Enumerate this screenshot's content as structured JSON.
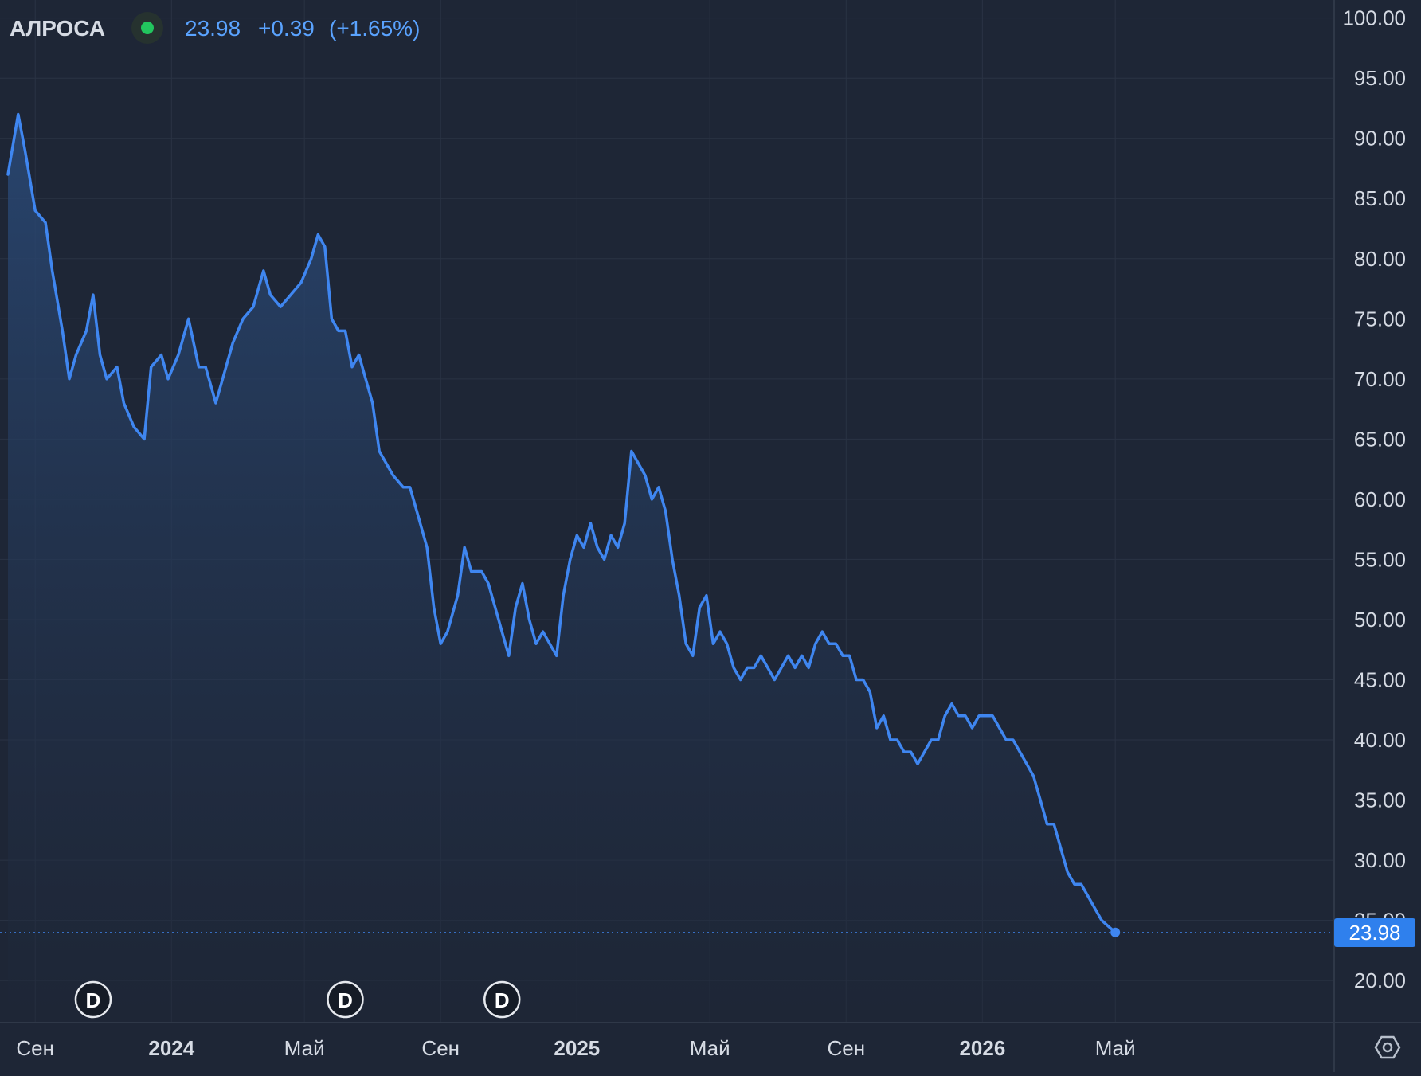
{
  "header": {
    "ticker": "АЛРОСА",
    "status_color": "#22c55e",
    "last_price": "23.98",
    "change": "+0.39",
    "change_pct": "(+1.65%)"
  },
  "price_tag": "23.98",
  "dividend_markers": [
    "D",
    "D",
    "D"
  ],
  "settings_icon": "gear-hexagon-icon",
  "colors": {
    "background": "#1e2636",
    "line": "#3f86f0",
    "fill_top": "#2a4a78",
    "text": "#d6dbe4",
    "grid": "#2a3344",
    "accent_text": "#5aa3ff"
  },
  "chart_data": {
    "type": "area",
    "title": "",
    "xlabel": "",
    "ylabel": "",
    "ylim": [
      16.5,
      101.5
    ],
    "xlim": [
      0.0,
      36.2
    ],
    "x_tick_labels": [
      {
        "x": 0.8,
        "label": "Сен",
        "bold": false
      },
      {
        "x": 4.8,
        "label": "2024",
        "bold": true
      },
      {
        "x": 8.7,
        "label": "Май",
        "bold": false
      },
      {
        "x": 12.7,
        "label": "Сен",
        "bold": false
      },
      {
        "x": 16.7,
        "label": "2025",
        "bold": true
      },
      {
        "x": 20.6,
        "label": "Май",
        "bold": false
      },
      {
        "x": 24.6,
        "label": "Сен",
        "bold": false
      },
      {
        "x": 28.6,
        "label": "2026",
        "bold": true
      },
      {
        "x": 32.5,
        "label": "Май",
        "bold": false
      }
    ],
    "y_ticks": [
      20,
      25,
      30,
      35,
      40,
      45,
      50,
      55,
      60,
      65,
      70,
      75,
      80,
      85,
      90,
      95,
      100
    ],
    "last_value": 23.98,
    "dividend_x": [
      2.5,
      9.9,
      14.5
    ],
    "series": [
      {
        "points": [
          [
            0.0,
            87
          ],
          [
            0.3,
            92
          ],
          [
            0.5,
            89
          ],
          [
            0.8,
            84
          ],
          [
            1.1,
            83
          ],
          [
            1.3,
            79
          ],
          [
            1.6,
            74
          ],
          [
            1.8,
            70
          ],
          [
            2.0,
            72
          ],
          [
            2.3,
            74
          ],
          [
            2.5,
            77
          ],
          [
            2.7,
            72
          ],
          [
            2.9,
            70
          ],
          [
            3.2,
            71
          ],
          [
            3.4,
            68
          ],
          [
            3.7,
            66
          ],
          [
            4.0,
            65
          ],
          [
            4.2,
            71
          ],
          [
            4.5,
            72
          ],
          [
            4.7,
            70
          ],
          [
            5.0,
            72
          ],
          [
            5.3,
            75
          ],
          [
            5.6,
            71
          ],
          [
            5.8,
            71
          ],
          [
            6.1,
            68
          ],
          [
            6.3,
            70
          ],
          [
            6.6,
            73
          ],
          [
            6.9,
            75
          ],
          [
            7.2,
            76
          ],
          [
            7.5,
            79
          ],
          [
            7.7,
            77
          ],
          [
            8.0,
            76
          ],
          [
            8.3,
            77
          ],
          [
            8.6,
            78
          ],
          [
            8.9,
            80
          ],
          [
            9.1,
            82
          ],
          [
            9.3,
            81
          ],
          [
            9.5,
            75
          ],
          [
            9.7,
            74
          ],
          [
            9.9,
            74
          ],
          [
            10.1,
            71
          ],
          [
            10.3,
            72
          ],
          [
            10.5,
            70
          ],
          [
            10.7,
            68
          ],
          [
            10.9,
            64
          ],
          [
            11.1,
            63
          ],
          [
            11.3,
            62
          ],
          [
            11.6,
            61
          ],
          [
            11.8,
            61
          ],
          [
            12.0,
            59
          ],
          [
            12.3,
            56
          ],
          [
            12.5,
            51
          ],
          [
            12.7,
            48
          ],
          [
            12.9,
            49
          ],
          [
            13.2,
            52
          ],
          [
            13.4,
            56
          ],
          [
            13.6,
            54
          ],
          [
            13.9,
            54
          ],
          [
            14.1,
            53
          ],
          [
            14.3,
            51
          ],
          [
            14.5,
            49
          ],
          [
            14.7,
            47
          ],
          [
            14.9,
            51
          ],
          [
            15.1,
            53
          ],
          [
            15.3,
            50
          ],
          [
            15.5,
            48
          ],
          [
            15.7,
            49
          ],
          [
            15.9,
            48
          ],
          [
            16.1,
            47
          ],
          [
            16.3,
            52
          ],
          [
            16.5,
            55
          ],
          [
            16.7,
            57
          ],
          [
            16.9,
            56
          ],
          [
            17.1,
            58
          ],
          [
            17.3,
            56
          ],
          [
            17.5,
            55
          ],
          [
            17.7,
            57
          ],
          [
            17.9,
            56
          ],
          [
            18.1,
            58
          ],
          [
            18.3,
            64
          ],
          [
            18.5,
            63
          ],
          [
            18.7,
            62
          ],
          [
            18.9,
            60
          ],
          [
            19.1,
            61
          ],
          [
            19.3,
            59
          ],
          [
            19.5,
            55
          ],
          [
            19.7,
            52
          ],
          [
            19.9,
            48
          ],
          [
            20.1,
            47
          ],
          [
            20.3,
            51
          ],
          [
            20.5,
            52
          ],
          [
            20.7,
            48
          ],
          [
            20.9,
            49
          ],
          [
            21.1,
            48
          ],
          [
            21.3,
            46
          ],
          [
            21.5,
            45
          ],
          [
            21.7,
            46
          ],
          [
            21.9,
            46
          ],
          [
            22.1,
            47
          ],
          [
            22.3,
            46
          ],
          [
            22.5,
            45
          ],
          [
            22.7,
            46
          ],
          [
            22.9,
            47
          ],
          [
            23.1,
            46
          ],
          [
            23.3,
            47
          ],
          [
            23.5,
            46
          ],
          [
            23.7,
            48
          ],
          [
            23.9,
            49
          ],
          [
            24.1,
            48
          ],
          [
            24.3,
            48
          ],
          [
            24.5,
            47
          ],
          [
            24.7,
            47
          ],
          [
            24.9,
            45
          ],
          [
            25.1,
            45
          ],
          [
            25.3,
            44
          ],
          [
            25.5,
            41
          ],
          [
            25.7,
            42
          ],
          [
            25.9,
            40
          ],
          [
            26.1,
            40
          ],
          [
            26.3,
            39
          ],
          [
            26.5,
            39
          ],
          [
            26.7,
            38
          ],
          [
            26.9,
            39
          ],
          [
            27.1,
            40
          ],
          [
            27.3,
            40
          ],
          [
            27.5,
            42
          ],
          [
            27.7,
            43
          ],
          [
            27.9,
            42
          ],
          [
            28.1,
            42
          ],
          [
            28.3,
            41
          ],
          [
            28.5,
            42
          ],
          [
            28.7,
            42
          ],
          [
            28.9,
            42
          ],
          [
            29.1,
            41
          ],
          [
            29.3,
            40
          ],
          [
            29.5,
            40
          ],
          [
            29.7,
            39
          ],
          [
            29.9,
            38
          ],
          [
            30.1,
            37
          ],
          [
            30.3,
            35
          ],
          [
            30.5,
            33
          ],
          [
            30.7,
            33
          ],
          [
            30.9,
            31
          ],
          [
            31.1,
            29
          ],
          [
            31.3,
            28
          ],
          [
            31.5,
            28
          ],
          [
            31.7,
            27
          ],
          [
            31.9,
            26
          ],
          [
            32.1,
            25
          ],
          [
            32.3,
            24.5
          ],
          [
            32.5,
            24
          ]
        ]
      }
    ]
  }
}
